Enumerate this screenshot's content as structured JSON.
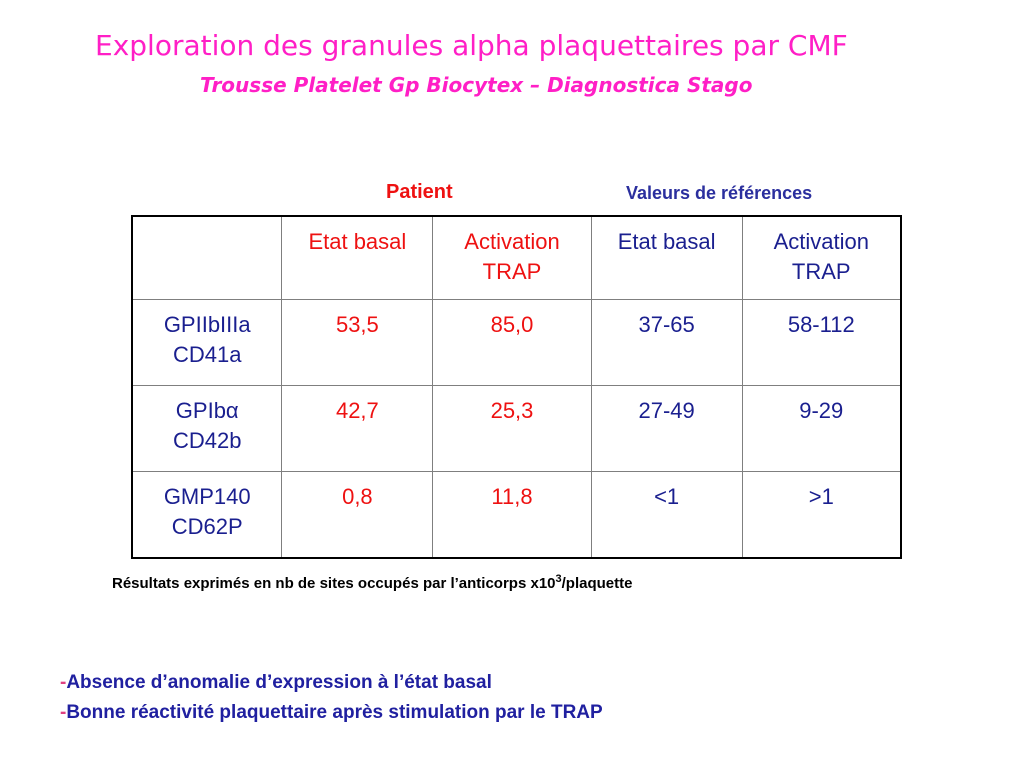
{
  "title": {
    "main": "Exploration des granules alpha plaquettaires par CMF",
    "sub": "Trousse Platelet Gp Biocytex – Diagnostica Stago"
  },
  "groups": {
    "patient": "Patient",
    "reference": "Valeurs de références"
  },
  "table": {
    "headers": [
      "",
      "Etat basal",
      "Activation TRAP",
      "Etat basal",
      "Activation TRAP"
    ],
    "rows": [
      {
        "marker_line1": "GPIIbIIIa",
        "marker_line2": "CD41a",
        "patient_basal": "53,5",
        "patient_trap": "85,0",
        "ref_basal": "37-65",
        "ref_trap": "58-112"
      },
      {
        "marker_line1": "GPIbα",
        "marker_line2": "CD42b",
        "patient_basal": "42,7",
        "patient_trap": "25,3",
        "ref_basal": "27-49",
        "ref_trap": "9-29"
      },
      {
        "marker_line1": "GMP140",
        "marker_line2": "CD62P",
        "patient_basal": "0,8",
        "patient_trap": "11,8",
        "ref_basal": "<1",
        "ref_trap": ">1"
      }
    ]
  },
  "footnote": {
    "text": "Résultats exprimés en nb de sites occupés par l’anticorps x10",
    "exponent": "3",
    "suffix": "/plaquette"
  },
  "conclusions": [
    {
      "dash": "-",
      "text": "Absence d’anomalie d’expression à l’état basal"
    },
    {
      "dash": "-",
      "text": "Bonne réactivité plaquettaire après stimulation par le TRAP"
    }
  ],
  "colors": {
    "title": "#ff1fc6",
    "patient": "#ee1111",
    "reference": "#2b2f9e",
    "conclusion": "#2020a0",
    "dash": "#e04080"
  }
}
